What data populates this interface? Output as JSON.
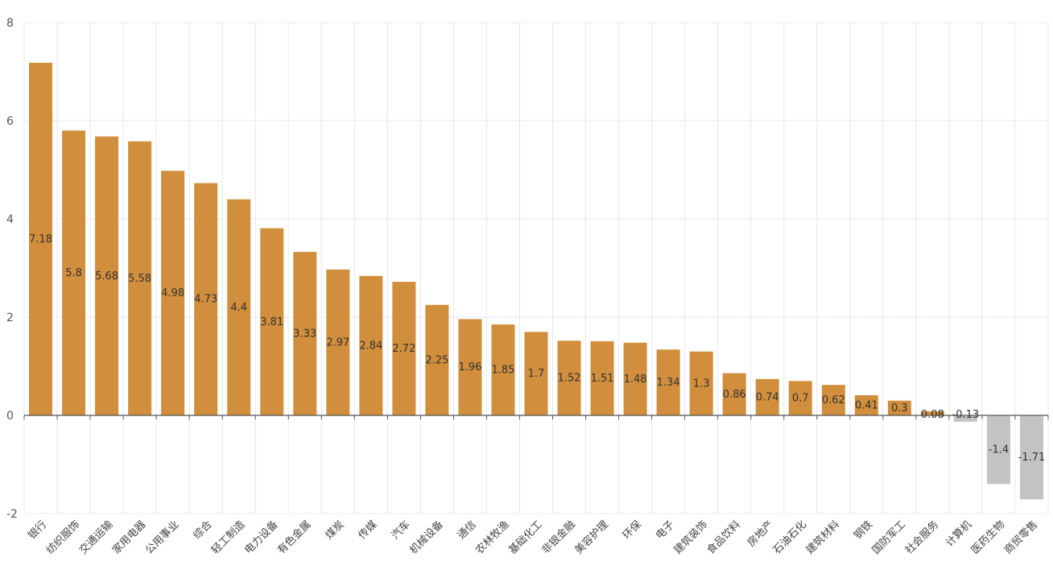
{
  "chart_data": {
    "type": "bar",
    "categories": [
      "银行",
      "纺织服饰",
      "交通运输",
      "家用电器",
      "公用事业",
      "综合",
      "轻工制造",
      "电力设备",
      "有色金属",
      "煤炭",
      "传媒",
      "汽车",
      "机械设备",
      "通信",
      "农林牧渔",
      "基础化工",
      "非银金融",
      "美容护理",
      "环保",
      "电子",
      "建筑装饰",
      "食品饮料",
      "房地产",
      "石油石化",
      "建筑材料",
      "钢铁",
      "国防军工",
      "社会服务",
      "计算机",
      "医药生物",
      "商贸零售"
    ],
    "values": [
      7.18,
      5.8,
      5.68,
      5.58,
      4.98,
      4.73,
      4.4,
      3.81,
      3.33,
      2.97,
      2.84,
      2.72,
      2.25,
      1.96,
      1.85,
      1.7,
      1.52,
      1.51,
      1.48,
      1.34,
      1.3,
      0.86,
      0.74,
      0.7,
      0.62,
      0.41,
      0.3,
      0.08,
      -0.13,
      -1.4,
      -1.71
    ],
    "value_labels": [
      "7.18",
      "5.8",
      "5.68",
      "5.58",
      "4.98",
      "4.73",
      "4.4",
      "3.81",
      "3.33",
      "2.97",
      "2.84",
      "2.72",
      "2.25",
      "1.96",
      "1.85",
      "1.7",
      "1.52",
      "1.51",
      "1.48",
      "1.34",
      "1.3",
      "0.86",
      "0.74",
      "0.7",
      "0.62",
      "0.41",
      "0.3",
      "0.08",
      "-0.13",
      "-1.4",
      "-1.71"
    ],
    "yticks": [
      -2,
      0,
      2,
      4,
      6,
      8
    ],
    "ytick_labels": [
      "-2",
      "0",
      "2",
      "4",
      "6",
      "8"
    ],
    "ylim": [
      -2,
      8
    ],
    "grid": true,
    "colors": {
      "positive": "#D18E3C",
      "negative": "#C3C3C3",
      "grid": "#E6E8F0",
      "axis": "#555555"
    }
  }
}
